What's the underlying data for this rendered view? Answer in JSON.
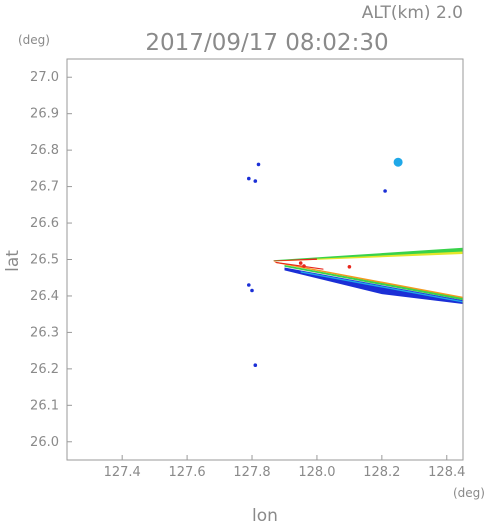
{
  "chart_data": {
    "type": "scatter",
    "title": "2017/09/17 08:02:30",
    "subtitle": "ALT(km) 2.0",
    "xlabel": "lon",
    "ylabel": "lat",
    "x_unit": "(deg)",
    "y_unit": "(deg)",
    "xlim": [
      127.23,
      128.45
    ],
    "ylim": [
      25.95,
      27.05
    ],
    "x_ticks": [
      "127.4",
      "127.6",
      "127.8",
      "128.0",
      "128.2",
      "128.4"
    ],
    "y_ticks": [
      "26.0",
      "26.1",
      "26.2",
      "26.3",
      "26.4",
      "26.5",
      "26.6",
      "26.7",
      "26.8",
      "26.9",
      "27.0"
    ],
    "grid": false,
    "colors": {
      "blue": "#1b2fd6",
      "cyan": "#1fa8e8",
      "green": "#39d24a",
      "yellow": "#e4e62a",
      "orange": "#f39a1d",
      "red": "#e8261b"
    },
    "echoes": [
      {
        "lon": 127.82,
        "lat": 26.761,
        "color": "blue"
      },
      {
        "lon": 127.79,
        "lat": 26.722,
        "color": "blue"
      },
      {
        "lon": 127.81,
        "lat": 26.715,
        "color": "blue"
      },
      {
        "lon": 128.25,
        "lat": 26.767,
        "color": "cyan"
      },
      {
        "lon": 128.21,
        "lat": 26.688,
        "color": "blue"
      },
      {
        "lon": 127.79,
        "lat": 26.43,
        "color": "blue"
      },
      {
        "lon": 127.8,
        "lat": 26.415,
        "color": "blue"
      },
      {
        "lon": 127.81,
        "lat": 26.21,
        "color": "blue"
      },
      {
        "lon": 127.95,
        "lat": 26.49,
        "color": "red"
      },
      {
        "lon": 127.96,
        "lat": 26.482,
        "color": "red"
      },
      {
        "lon": 128.1,
        "lat": 26.48,
        "color": "red"
      }
    ]
  }
}
